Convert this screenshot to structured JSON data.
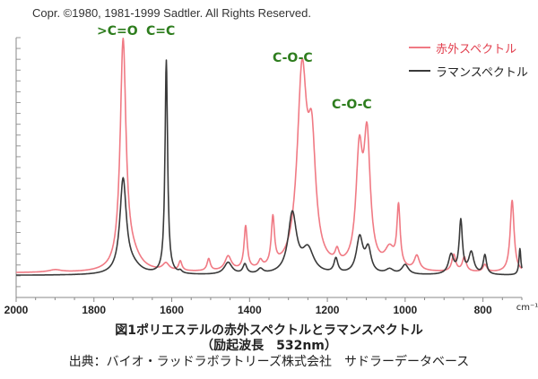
{
  "copyright": "Copr. ©1980, 1981-1999 Sadtler.   All Rights Reserved.",
  "annotations": [
    {
      "text": ">C=O",
      "x": 1725
    },
    {
      "text": "C=C",
      "x": 1615
    },
    {
      "text": "C-O-C",
      "x": 1262
    },
    {
      "text": "C-O-C",
      "x": 1090
    }
  ],
  "legend": [
    {
      "label": "赤外スペクトル",
      "color": "#f07a84"
    },
    {
      "label": "ラマンスペクトル",
      "color": "#3a3a3a"
    }
  ],
  "caption": {
    "line1": "図1ポリエステルの赤外スペクトルとラマンスペクトル",
    "line2": "（励起波長　532nm）",
    "line3": "出典：バイオ・ラッドラボラトリーズ株式会社　サドラーデータベース"
  },
  "chart_data": {
    "type": "line",
    "x_unit": "cm⁻¹",
    "xlim": [
      2000,
      700
    ],
    "ylim": [
      0,
      1
    ],
    "x_ticks": [
      2000,
      1800,
      1600,
      1400,
      1200,
      1000,
      800
    ],
    "x_tick_labels": [
      "2000",
      "1800",
      "1600",
      "1400",
      "1200",
      "1000",
      "800"
    ],
    "series": [
      {
        "name": "赤外スペクトル",
        "color": "#f07a84",
        "baseline": 0.02,
        "peaks": [
          {
            "x": 1900,
            "h": 0.01,
            "w": 20
          },
          {
            "x": 1725,
            "h": 0.95,
            "w": 9
          },
          {
            "x": 1700,
            "h": 0.05,
            "w": 25
          },
          {
            "x": 1615,
            "h": 0.03,
            "w": 10
          },
          {
            "x": 1578,
            "h": 0.04,
            "w": 5
          },
          {
            "x": 1505,
            "h": 0.05,
            "w": 5
          },
          {
            "x": 1455,
            "h": 0.06,
            "w": 10
          },
          {
            "x": 1410,
            "h": 0.18,
            "w": 5
          },
          {
            "x": 1372,
            "h": 0.03,
            "w": 6
          },
          {
            "x": 1340,
            "h": 0.2,
            "w": 5
          },
          {
            "x": 1265,
            "h": 0.8,
            "w": 15
          },
          {
            "x": 1240,
            "h": 0.45,
            "w": 12
          },
          {
            "x": 1175,
            "h": 0.05,
            "w": 6
          },
          {
            "x": 1118,
            "h": 0.45,
            "w": 10
          },
          {
            "x": 1098,
            "h": 0.52,
            "w": 10
          },
          {
            "x": 1040,
            "h": 0.08,
            "w": 15
          },
          {
            "x": 1017,
            "h": 0.25,
            "w": 5
          },
          {
            "x": 970,
            "h": 0.06,
            "w": 8
          },
          {
            "x": 875,
            "h": 0.07,
            "w": 6
          },
          {
            "x": 848,
            "h": 0.06,
            "w": 6
          },
          {
            "x": 795,
            "h": 0.03,
            "w": 6
          },
          {
            "x": 725,
            "h": 0.3,
            "w": 6
          }
        ]
      },
      {
        "name": "ラマンスペクトル",
        "color": "#3a3a3a",
        "baseline": 0.01,
        "peaks": [
          {
            "x": 1725,
            "h": 0.39,
            "w": 10
          },
          {
            "x": 1700,
            "h": 0.03,
            "w": 25
          },
          {
            "x": 1614,
            "h": 0.89,
            "w": 4
          },
          {
            "x": 1578,
            "h": 0.01,
            "w": 5
          },
          {
            "x": 1455,
            "h": 0.05,
            "w": 12
          },
          {
            "x": 1412,
            "h": 0.04,
            "w": 6
          },
          {
            "x": 1372,
            "h": 0.02,
            "w": 8
          },
          {
            "x": 1290,
            "h": 0.25,
            "w": 13
          },
          {
            "x": 1250,
            "h": 0.1,
            "w": 18
          },
          {
            "x": 1178,
            "h": 0.06,
            "w": 6
          },
          {
            "x": 1117,
            "h": 0.15,
            "w": 10
          },
          {
            "x": 1095,
            "h": 0.1,
            "w": 9
          },
          {
            "x": 1040,
            "h": 0.02,
            "w": 12
          },
          {
            "x": 1000,
            "h": 0.04,
            "w": 10
          },
          {
            "x": 882,
            "h": 0.08,
            "w": 8
          },
          {
            "x": 857,
            "h": 0.22,
            "w": 5
          },
          {
            "x": 830,
            "h": 0.09,
            "w": 8
          },
          {
            "x": 795,
            "h": 0.08,
            "w": 5
          },
          {
            "x": 705,
            "h": 0.11,
            "w": 3
          }
        ]
      }
    ]
  }
}
